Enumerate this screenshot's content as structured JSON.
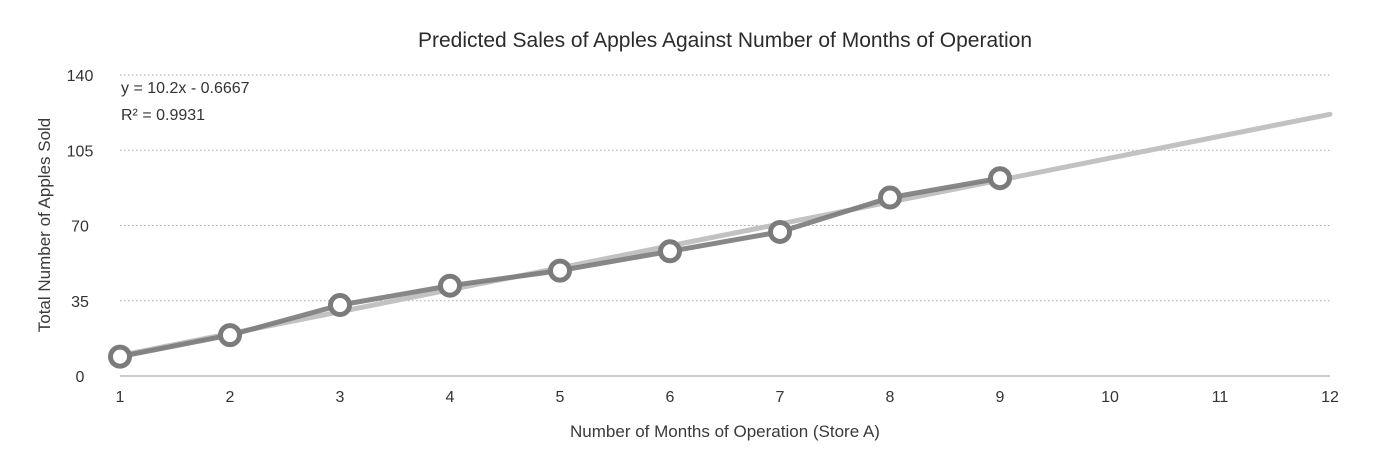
{
  "chart_data": {
    "type": "line",
    "title": "Predicted Sales of Apples Against Number of Months of Operation",
    "xlabel": "Number of Months of Operation (Store A)",
    "ylabel": "Total Number of Apples Sold",
    "xlim": [
      1,
      12
    ],
    "ylim": [
      0,
      140
    ],
    "x_ticks": [
      1,
      2,
      3,
      4,
      5,
      6,
      7,
      8,
      9,
      10,
      11,
      12
    ],
    "y_ticks": [
      0,
      35,
      70,
      105,
      140
    ],
    "grid": true,
    "series": [
      {
        "x": [
          1,
          2,
          3,
          4,
          5,
          6,
          7,
          8,
          9
        ],
        "y": [
          9,
          19,
          33,
          42,
          49,
          58,
          67,
          83,
          92
        ],
        "color": "#7b7b7b",
        "marker": "hollow-circle"
      }
    ],
    "trendline": {
      "type": "linear",
      "slope": 10.2,
      "intercept": -0.6667,
      "x_range": [
        1,
        12
      ],
      "color": "#c2c2c2"
    },
    "annotations": {
      "equation": "y = 10.2x - 0.6667",
      "r_squared": "R² = 0.9931"
    }
  }
}
